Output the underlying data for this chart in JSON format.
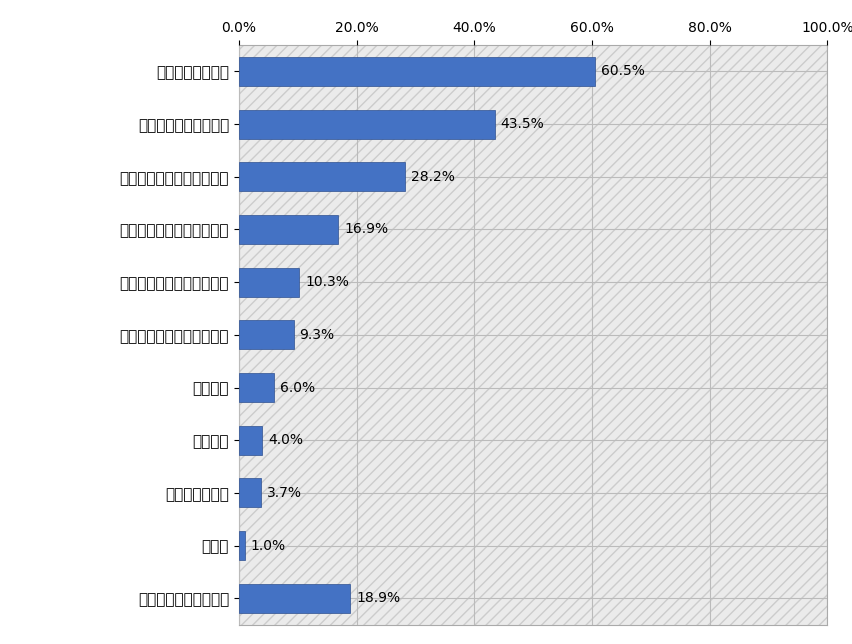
{
  "categories": [
    "あてはまるものはない",
    "その他",
    "オンライン学習",
    "家庭教師",
    "通信教育",
    "塾・予備校（個別指導型）",
    "塾・予備校（映像授業型）",
    "塾・予備校（集団授業型）",
    "学校の特別講座・補習授業",
    "市販の問題集・参考書",
    "学校の授業・教材"
  ],
  "values": [
    18.9,
    1.0,
    3.7,
    4.0,
    6.0,
    9.3,
    10.3,
    16.9,
    28.2,
    43.5,
    60.5
  ],
  "bar_color": "#4472C4",
  "bar_edge_color": "#2E5090",
  "label_color": "#000000",
  "grid_color": "#BBBBBB",
  "hatch_bg_color": "#E8E8E8",
  "hatch_edge_color": "#CCCCCC",
  "xlim": [
    0,
    100
  ],
  "xticks": [
    0.0,
    20.0,
    40.0,
    60.0,
    80.0,
    100.0
  ],
  "xtick_labels": [
    "0.0%",
    "20.0%",
    "40.0%",
    "60.0%",
    "80.0%",
    "100.0%"
  ],
  "figsize": [
    8.53,
    6.44
  ],
  "dpi": 100,
  "label_fontsize": 11,
  "tick_fontsize": 10,
  "value_fontsize": 10,
  "bar_height": 0.55
}
